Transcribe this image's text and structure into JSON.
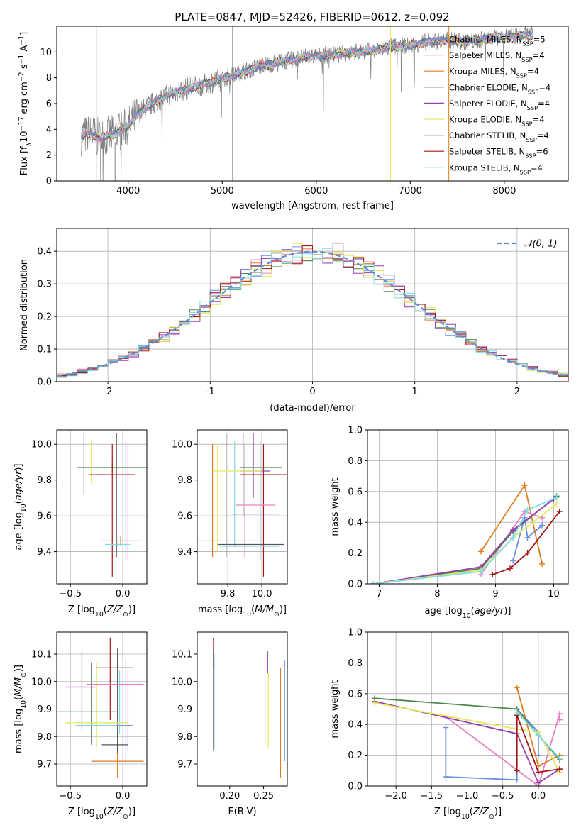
{
  "figure_title": "PLATE=0847, MJD=52426, FIBERID=0612, z=0.092",
  "colors": {
    "chabrier_miles": "#6a8ee0",
    "salpeter_miles": "#e97fbf",
    "kroupa_miles": "#e07b20",
    "chabrier_elodie": "#4c8a4c",
    "salpeter_elodie": "#9a3fb0",
    "kroupa_elodie": "#e6e85a",
    "chabrier_stelib": "#555555",
    "salpeter_stelib": "#a51818",
    "kroupa_stelib": "#7fdce6",
    "data_spectrum": "#808080",
    "gaussian": "#5b8fd8"
  },
  "chart_data": [
    {
      "id": "spectrum",
      "type": "line",
      "xlabel": "wavelength [Angstrom, rest frame]",
      "ylabel": "Flux [f",
      "ylabel_parts": {
        "a": "Flux [f",
        "b": "λ",
        "c": "10",
        "d": "−17",
        "e": " erg cm",
        "f": "−2",
        "g": " s",
        "h": "−1",
        "i": " A",
        "j": "−1",
        "k": "]"
      },
      "xlim": [
        3240,
        8680
      ],
      "ylim": [
        0,
        12
      ],
      "xticks": [
        4000,
        5000,
        6000,
        7000,
        8000
      ],
      "yticks": [
        0,
        2,
        4,
        6,
        8,
        10
      ],
      "grid": false,
      "legend_position": "top-right",
      "legend": [
        {
          "label": "Chabrier MILES, N",
          "n": "5",
          "color_key": "chabrier_miles"
        },
        {
          "label": "Salpeter MILES, N",
          "n": "4",
          "color_key": "salpeter_miles"
        },
        {
          "label": "Kroupa MILES, N",
          "n": "4",
          "color_key": "kroupa_miles"
        },
        {
          "label": "Chabrier ELODIE, N",
          "n": "4",
          "color_key": "chabrier_elodie"
        },
        {
          "label": "Salpeter ELODIE, N",
          "n": "4",
          "color_key": "salpeter_elodie"
        },
        {
          "label": "Kroupa ELODIE, N",
          "n": "4",
          "color_key": "kroupa_elodie"
        },
        {
          "label": "Chabrier STELIB, N",
          "n": "4",
          "color_key": "chabrier_stelib"
        },
        {
          "label": "Salpeter STELIB, N",
          "n": "6",
          "color_key": "salpeter_stelib"
        },
        {
          "label": "Kroupa STELIB, N",
          "n": "4",
          "color_key": "kroupa_stelib"
        }
      ],
      "legend_sub": "SSP",
      "continuum": {
        "wavelength": [
          3500,
          3600,
          3700,
          3800,
          3900,
          4000,
          4100,
          4200,
          4300,
          4400,
          4500,
          4600,
          4700,
          4800,
          4900,
          5000,
          5200,
          5400,
          5600,
          5800,
          6000,
          6200,
          6400,
          6600,
          6800,
          7000,
          7200,
          7400,
          7600,
          7800,
          8000,
          8200,
          8300
        ],
        "flux": [
          3.5,
          3.6,
          3.3,
          3.5,
          3.8,
          4.2,
          5.2,
          5.7,
          6.2,
          6.6,
          6.9,
          7.1,
          7.3,
          7.5,
          7.7,
          7.9,
          8.4,
          8.9,
          9.2,
          9.5,
          9.7,
          9.8,
          10.0,
          10.1,
          10.4,
          10.5,
          10.8,
          10.9,
          10.8,
          11.0,
          11.2,
          11.3,
          11.3
        ]
      }
    },
    {
      "id": "residual-histogram",
      "type": "line",
      "xlabel": "(data-model)/error",
      "ylabel": "Normed distribution",
      "xlim": [
        -2.5,
        2.5
      ],
      "ylim": [
        0,
        0.47
      ],
      "xticks": [
        -2,
        -1,
        0,
        1,
        2
      ],
      "yticks": [
        0.0,
        0.1,
        0.2,
        0.3,
        0.4
      ],
      "grid": true,
      "legend_position": "top-right",
      "legend": [
        {
          "label": "𝒩(0, 1)",
          "color_key": "gaussian",
          "dashed": true
        }
      ],
      "bin_width": 0.1,
      "series_color_keys": [
        "chabrier_miles",
        "salpeter_miles",
        "kroupa_miles",
        "chabrier_elodie",
        "salpeter_elodie",
        "kroupa_elodie",
        "salpeter_stelib",
        "kroupa_stelib"
      ]
    },
    {
      "id": "age-vs-Z",
      "type": "scatter",
      "xlabel": "Z [log",
      "xlabel_parts": {
        "a": "Z [log",
        "b": "10",
        "c": "(Z/Z",
        "d": "⊙",
        "e": ")]"
      },
      "ylabel": "age  [log",
      "ylabel_parts": {
        "a": "age  [log",
        "b": "10",
        "c": "(age/yr)]"
      },
      "xlim": [
        -0.63,
        0.23
      ],
      "ylim": [
        9.22,
        10.08
      ],
      "xticks": [
        -0.5,
        0.0
      ],
      "xticklabels": [
        "−0.5",
        "0.0"
      ],
      "yticks": [
        9.4,
        9.6,
        9.8,
        10.0
      ],
      "grid": true,
      "points": [
        {
          "color_key": "chabrier_miles",
          "x": 0.03,
          "xerr": 0.0,
          "y": 9.68,
          "yerr": [
            9.36,
            10.02
          ]
        },
        {
          "color_key": "salpeter_miles",
          "x": 0.05,
          "xerr": 0.0,
          "y": 9.66,
          "yerr": [
            9.35,
            10.0
          ]
        },
        {
          "color_key": "kroupa_miles",
          "x": -0.02,
          "xerr": 0.2,
          "y": 9.46,
          "yerr": [
            9.43,
            9.49
          ]
        },
        {
          "color_key": "chabrier_elodie",
          "x": -0.1,
          "xerr": 0.33,
          "y": 9.87,
          "yerr": [
            9.84,
            9.9
          ]
        },
        {
          "color_key": "salpeter_elodie",
          "x": -0.37,
          "xerr": 0.0,
          "y": 9.89,
          "yerr": [
            9.72,
            10.06
          ]
        },
        {
          "color_key": "kroupa_elodie",
          "x": -0.3,
          "xerr": 0.0,
          "y": 9.9,
          "yerr": [
            9.78,
            10.02
          ]
        },
        {
          "color_key": "chabrier_stelib",
          "x": -0.06,
          "xerr": 0.0,
          "y": 9.72,
          "yerr": [
            9.37,
            10.06
          ]
        },
        {
          "color_key": "salpeter_stelib",
          "x": -0.1,
          "xerr": 0.22,
          "y": 9.83,
          "yerr": [
            9.26,
            10.0
          ]
        },
        {
          "color_key": "kroupa_stelib",
          "x": -0.05,
          "xerr": 0.12,
          "y": 9.44,
          "yerr": [
            9.43,
            9.45
          ]
        }
      ]
    },
    {
      "id": "age-vs-mass",
      "type": "scatter",
      "xlabel": "mass [log",
      "xlabel_parts": {
        "a": "mass [log",
        "b": "10",
        "c": "(M/M",
        "d": "⊙",
        "e": ")]"
      },
      "xlim": [
        9.62,
        10.15
      ],
      "ylim": [
        9.22,
        10.08
      ],
      "xticks": [
        9.8,
        10.0
      ],
      "xticklabels": [
        "9.8",
        "10.0"
      ],
      "yticks": [
        9.4,
        9.6,
        9.8,
        10.0
      ],
      "grid": true
    },
    {
      "id": "weight-vs-age",
      "type": "line",
      "xlabel": "age  [log",
      "xlabel_parts": {
        "a": "age  [log",
        "b": "10",
        "c": "(age/yr)]"
      },
      "ylabel": "mass weight",
      "xlim": [
        6.8,
        10.25
      ],
      "ylim": [
        0,
        1
      ],
      "xticks": [
        7,
        8,
        9,
        10
      ],
      "yticks": [
        0.0,
        0.2,
        0.4,
        0.6,
        0.8,
        1.0
      ],
      "grid": true,
      "series": [
        {
          "color_key": "kroupa_miles",
          "age": [
            8.75,
            9.5,
            9.8
          ],
          "w": [
            0.21,
            0.64,
            0.13
          ]
        },
        {
          "color_key": "salpeter_miles",
          "age": [
            8.75,
            9.5,
            9.8
          ],
          "w": [
            0.06,
            0.47,
            0.43
          ]
        },
        {
          "color_key": "chabrier_miles",
          "age": [
            9.3,
            9.5,
            9.55,
            9.8
          ],
          "w": [
            0.15,
            0.43,
            0.3,
            0.38
          ]
        },
        {
          "color_key": "chabrier_elodie",
          "age": [
            6.9,
            8.75,
            9.3,
            10.05
          ],
          "w": [
            0.0,
            0.1,
            0.34,
            0.57
          ]
        },
        {
          "color_key": "salpeter_elodie",
          "age": [
            6.9,
            8.75,
            9.3,
            10.0
          ],
          "w": [
            0.0,
            0.11,
            0.35,
            0.55
          ]
        },
        {
          "color_key": "kroupa_elodie",
          "age": [
            6.9,
            8.75,
            9.3,
            10.05
          ],
          "w": [
            0.0,
            0.09,
            0.3,
            0.52
          ]
        },
        {
          "color_key": "salpeter_stelib",
          "age": [
            8.95,
            9.25,
            9.55,
            10.1
          ],
          "w": [
            0.06,
            0.1,
            0.2,
            0.47
          ]
        },
        {
          "color_key": "kroupa_stelib",
          "age": [
            6.9,
            8.75,
            9.3,
            9.55,
            10.05
          ],
          "w": [
            0.0,
            0.08,
            0.3,
            0.48,
            0.56
          ]
        }
      ]
    },
    {
      "id": "mass-vs-Z",
      "type": "scatter",
      "xlabel": "Z [log",
      "xlabel_parts": {
        "a": "Z [log",
        "b": "10",
        "c": "(Z/Z",
        "d": "⊙",
        "e": ")]"
      },
      "ylabel": "mass [log",
      "ylabel_parts": {
        "a": "mass [log",
        "b": "10",
        "c": "(M/M",
        "d": "⊙",
        "e": ")]"
      },
      "xlim": [
        -0.63,
        0.23
      ],
      "ylim": [
        9.62,
        10.18
      ],
      "xticks": [
        -0.5,
        0.0
      ],
      "xticklabels": [
        "−0.5",
        "0.0"
      ],
      "yticks": [
        9.7,
        9.8,
        9.9,
        10.0,
        10.1
      ],
      "grid": true
    },
    {
      "id": "mass-vs-ebv",
      "type": "scatter",
      "xlabel": "E(B-V)",
      "xlim": [
        0.152,
        0.285
      ],
      "ylim": [
        9.62,
        10.18
      ],
      "xticks": [
        0.2,
        0.25
      ],
      "xticklabels": [
        "0.20",
        "0.25"
      ],
      "yticks": [
        9.7,
        9.8,
        9.9,
        10.0,
        10.1
      ],
      "grid": false
    },
    {
      "id": "weight-vs-Z",
      "type": "line",
      "xlabel": "Z [log",
      "xlabel_parts": {
        "a": "Z [log",
        "b": "10",
        "c": "(Z/Z",
        "d": "⊙",
        "e": ")]"
      },
      "ylabel": "mass weight",
      "xlim": [
        -2.4,
        0.42
      ],
      "ylim": [
        0,
        1
      ],
      "xticks": [
        -2.0,
        -1.5,
        -1.0,
        -0.5,
        0.0
      ],
      "xticklabels": [
        "−2.0",
        "−1.5",
        "−1.0",
        "−0.5",
        "0.0"
      ],
      "yticks": [
        0.0,
        0.2,
        0.4,
        0.6,
        0.8,
        1.0
      ],
      "grid": true,
      "series": [
        {
          "color_key": "chabrier_miles",
          "Z": [
            -1.3,
            -1.3,
            -0.3,
            -0.3,
            0.0,
            0.0
          ],
          "w": [
            0.38,
            0.06,
            0.04,
            0.5,
            0.35,
            0.2
          ]
        },
        {
          "color_key": "salpeter_miles",
          "Z": [
            -1.3,
            0.0,
            0.3,
            0.3
          ],
          "w": [
            0.45,
            0.0,
            0.47,
            0.43
          ]
        },
        {
          "color_key": "kroupa_miles",
          "Z": [
            -0.3,
            0.0,
            0.3
          ],
          "w": [
            0.64,
            0.13,
            0.2
          ]
        },
        {
          "color_key": "chabrier_elodie",
          "Z": [
            -2.3,
            -0.3,
            0.0,
            0.3
          ],
          "w": [
            0.57,
            0.5,
            0.33,
            0.17
          ]
        },
        {
          "color_key": "salpeter_elodie",
          "Z": [
            -2.3,
            -0.3,
            0.0,
            0.3
          ],
          "w": [
            0.55,
            0.34,
            0.02,
            0.11
          ]
        },
        {
          "color_key": "kroupa_elodie",
          "Z": [
            -2.3,
            -0.3,
            0.0,
            0.3
          ],
          "w": [
            0.54,
            0.37,
            0.35,
            0.09
          ]
        },
        {
          "color_key": "salpeter_stelib",
          "Z": [
            -0.3,
            -0.3,
            0.0,
            0.3
          ],
          "w": [
            0.1,
            0.46,
            0.09,
            0.11
          ]
        },
        {
          "color_key": "kroupa_stelib",
          "Z": [
            -0.3,
            0.0,
            0.3
          ],
          "w": [
            0.48,
            0.33,
            0.18
          ]
        }
      ]
    }
  ]
}
